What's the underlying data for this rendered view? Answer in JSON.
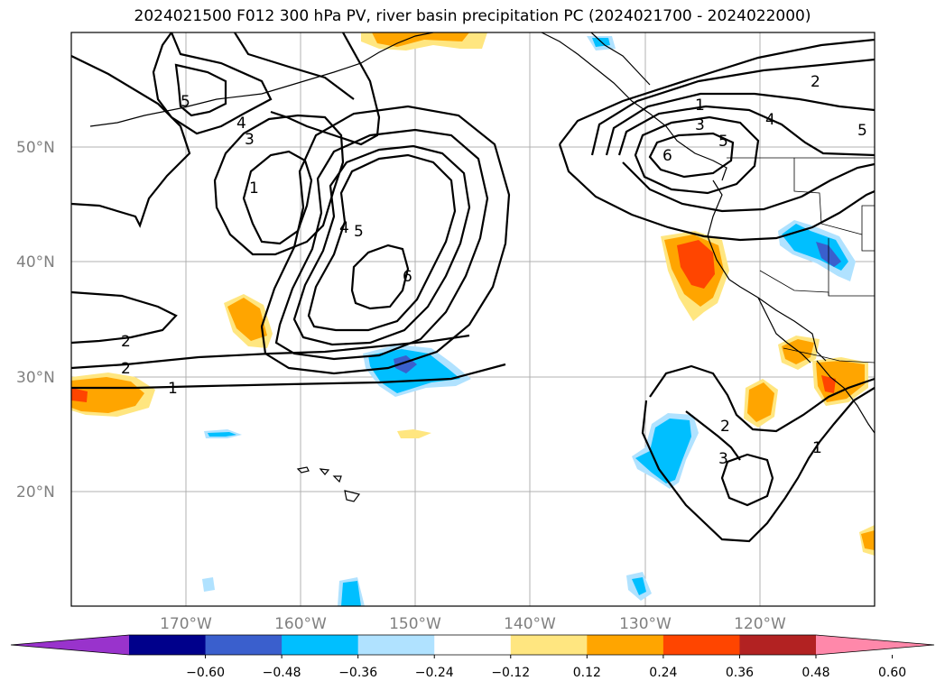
{
  "title": "2024021500 F012 300 hPa PV, river basin precipitation PC (2024021700 - 2024022000)",
  "lat_labels": [
    "20°N",
    "30°N",
    "40°N",
    "50°N"
  ],
  "lon_labels": [
    "170°W",
    "160°W",
    "150°W",
    "140°W",
    "130°W",
    "120°W"
  ],
  "colorbar": {
    "colors": [
      "#9933cc",
      "#00008b",
      "#3a5fcd",
      "#00bfff",
      "#b0e2ff",
      "#ffffff",
      "#ffe680",
      "#ffa500",
      "#ff4500",
      "#b22222",
      "#ff88aa"
    ],
    "tick_labels": [
      "−0.60",
      "−0.48",
      "−0.36",
      "−0.24",
      "−0.12",
      "0.12",
      "0.24",
      "0.36",
      "0.48",
      "0.60"
    ]
  },
  "pv_contour_labels": [
    {
      "text": "1"
    },
    {
      "text": "2"
    },
    {
      "text": "2"
    },
    {
      "text": "3"
    },
    {
      "text": "4"
    },
    {
      "text": "5"
    },
    {
      "text": "1"
    },
    {
      "text": "4"
    },
    {
      "text": "5"
    },
    {
      "text": "6"
    },
    {
      "text": "1"
    },
    {
      "text": "2"
    },
    {
      "text": "3"
    },
    {
      "text": "4"
    },
    {
      "text": "5"
    },
    {
      "text": "5"
    },
    {
      "text": "6"
    },
    {
      "text": "2"
    },
    {
      "text": "3"
    },
    {
      "text": "1"
    }
  ],
  "colors": {
    "grid": "#b0b0b0",
    "axis_label": "#808080",
    "contour": "#000000"
  }
}
